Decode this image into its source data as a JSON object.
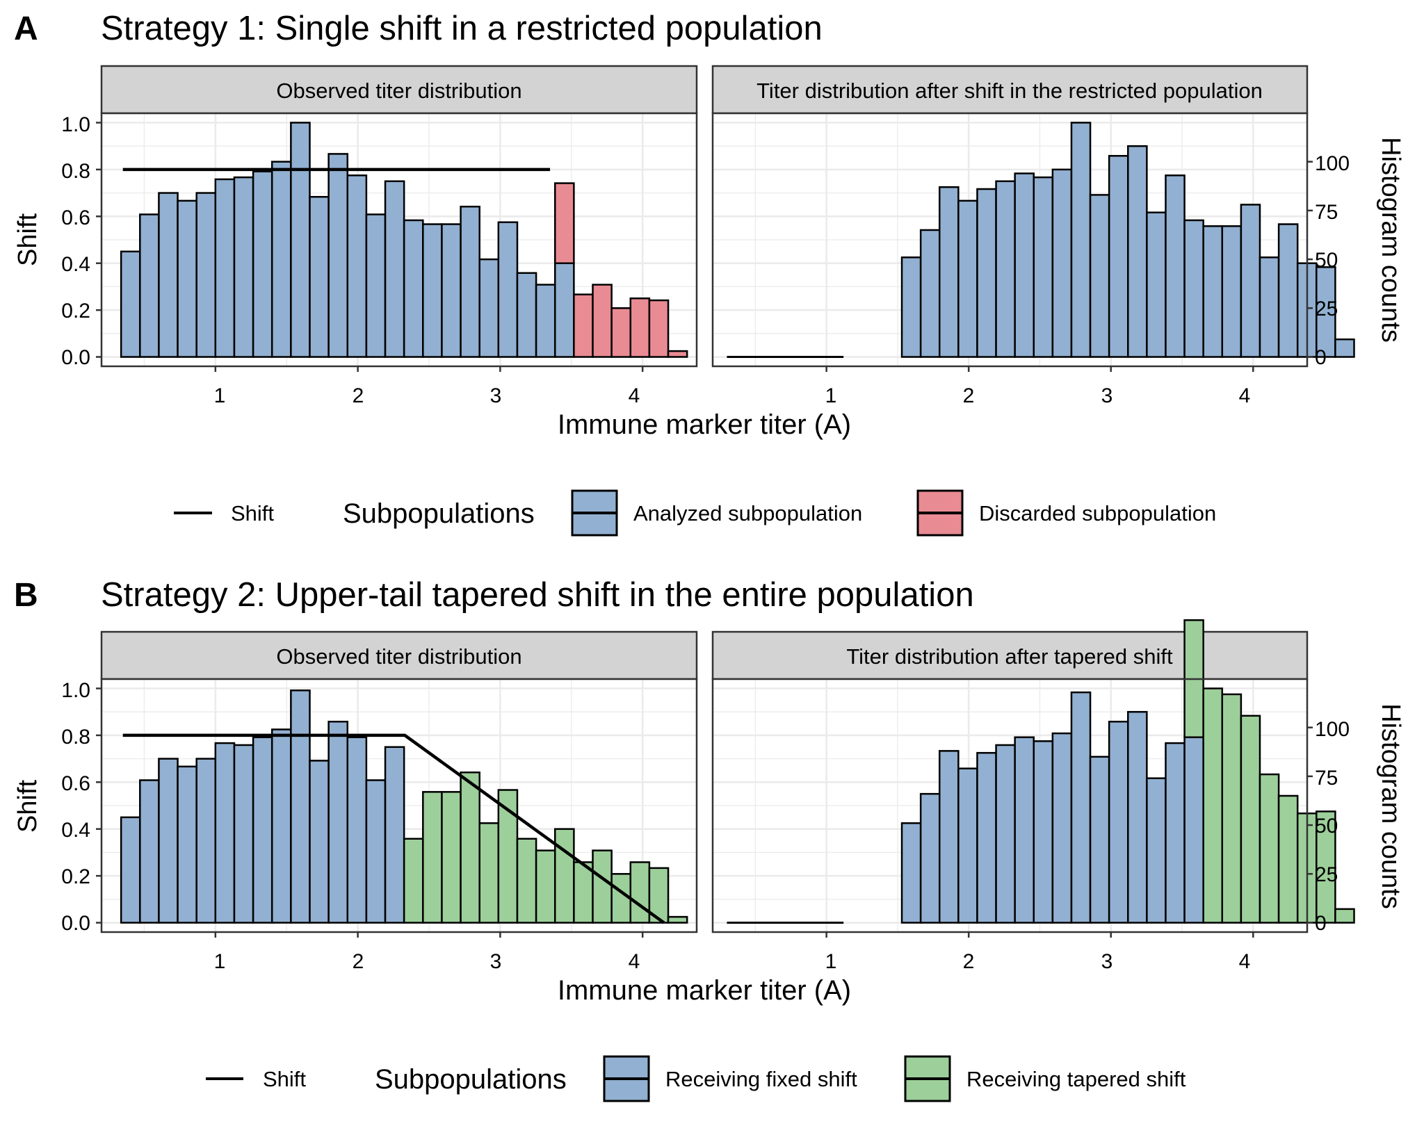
{
  "colors": {
    "fixed": "#92B0D1",
    "discarded": "#E98B93",
    "tapered": "#9DCF9A",
    "strip": "#D3D3D3",
    "grid": "#EBEBEB",
    "ink": "#000000"
  },
  "chart_data": [
    {
      "panel": "A",
      "type": "bar",
      "title": "Strategy 1: Single shift in a restricted population",
      "xlabel": "Immune marker titer (A)",
      "ylabel": "Shift",
      "y2label": "Histogram counts",
      "xlim": [
        0.2,
        4.38
      ],
      "xticks": [
        "1",
        "2",
        "3",
        "4"
      ],
      "ylim": [
        -0.04,
        1.04
      ],
      "yticks": [
        "0.0",
        "0.2",
        "0.4",
        "0.6",
        "0.8",
        "1.0"
      ],
      "y2ticks": [
        "0",
        "25",
        "50",
        "75",
        "100"
      ],
      "counts_per_unit_shift": 120,
      "bin_width": 0.1325,
      "facets": [
        {
          "strip": "Observed titer distribution",
          "x_start": 0.3375,
          "series": [
            {
              "name": "Analyzed subpopulation",
              "color_key": "fixed",
              "values": [
                54,
                73,
                84,
                80,
                84,
                91,
                92,
                95,
                100,
                120,
                82,
                104,
                93,
                73,
                90,
                70,
                68,
                68,
                77,
                50,
                69,
                43,
                37,
                48,
                0,
                0,
                0,
                0,
                0,
                0,
                0
              ]
            },
            {
              "name": "Discarded subpopulation",
              "color_key": "discarded",
              "values": [
                0,
                0,
                0,
                0,
                0,
                0,
                0,
                0,
                0,
                0,
                0,
                0,
                0,
                0,
                0,
                0,
                0,
                0,
                0,
                0,
                0,
                0,
                0,
                41,
                32,
                37,
                25,
                30,
                29,
                3,
                0
              ]
            }
          ],
          "shift_line": {
            "x": [
              0.35,
              3.35
            ],
            "y": [
              0.8,
              0.8
            ]
          }
        },
        {
          "strip": "Titer distribution after shift in the restricted population",
          "x_start": 0.3375,
          "series": [
            {
              "name": "Analyzed subpopulation",
              "color_key": "fixed",
              "values": [
                0,
                0,
                0,
                0,
                0,
                0,
                0,
                0,
                0,
                51,
                65,
                87,
                80,
                86,
                90,
                94,
                92,
                96,
                120,
                83,
                103,
                108,
                74,
                93,
                70,
                67,
                67,
                78,
                51,
                68,
                48,
                46,
                9
              ]
            }
          ],
          "baseline_line": {
            "x": [
              0.3,
              1.12
            ],
            "y": [
              0,
              0
            ]
          }
        }
      ],
      "legend": {
        "shift_label": "Shift",
        "title": "Subpopulations",
        "items": [
          {
            "label": "Analyzed subpopulation",
            "color_key": "fixed"
          },
          {
            "label": "Discarded subpopulation",
            "color_key": "discarded"
          }
        ]
      }
    },
    {
      "panel": "B",
      "type": "bar",
      "title": "Strategy 2: Upper-tail tapered shift in the entire population",
      "xlabel": "Immune marker titer (A)",
      "ylabel": "Shift",
      "y2label": "Histogram counts",
      "xlim": [
        0.2,
        4.38
      ],
      "xticks": [
        "1",
        "2",
        "3",
        "4"
      ],
      "ylim": [
        -0.04,
        1.04
      ],
      "yticks": [
        "0.0",
        "0.2",
        "0.4",
        "0.6",
        "0.8",
        "1.0"
      ],
      "y2ticks": [
        "0",
        "25",
        "50",
        "75",
        "100"
      ],
      "counts_per_unit_shift": 120,
      "bin_width": 0.1325,
      "facets": [
        {
          "strip": "Observed titer distribution",
          "x_start": 0.3375,
          "series": [
            {
              "name": "Receiving fixed shift",
              "color_key": "fixed",
              "values": [
                54,
                73,
                84,
                80,
                84,
                92,
                91,
                95,
                99,
                119,
                83,
                103,
                95,
                73,
                90,
                0,
                0,
                0,
                0,
                0,
                0,
                0,
                0,
                0,
                0,
                0,
                0,
                0,
                0,
                0,
                0
              ]
            },
            {
              "name": "Receiving tapered shift",
              "color_key": "tapered",
              "values": [
                0,
                0,
                0,
                0,
                0,
                0,
                0,
                0,
                0,
                0,
                0,
                0,
                0,
                0,
                0,
                43,
                67,
                67,
                77,
                51,
                68,
                43,
                37,
                48,
                31,
                37,
                25,
                31,
                28,
                3,
                0
              ]
            }
          ],
          "shift_line": {
            "x": [
              0.35,
              2.33,
              4.15
            ],
            "y": [
              0.8,
              0.8,
              0.0
            ]
          }
        },
        {
          "strip": "Titer distribution after tapered shift",
          "x_start": 0.3375,
          "series": [
            {
              "name": "Receiving fixed shift",
              "color_key": "fixed",
              "values": [
                0,
                0,
                0,
                0,
                0,
                0,
                0,
                0,
                0,
                51,
                66,
                88,
                79,
                87,
                91,
                95,
                93,
                97,
                118,
                85,
                103,
                108,
                74,
                92,
                95,
                0,
                0,
                0,
                0,
                0,
                0,
                0,
                0
              ]
            },
            {
              "name": "Receiving tapered shift",
              "color_key": "tapered",
              "values": [
                0,
                0,
                0,
                0,
                0,
                0,
                0,
                0,
                0,
                0,
                0,
                0,
                0,
                0,
                0,
                0,
                0,
                0,
                0,
                0,
                0,
                0,
                0,
                0,
                60,
                120,
                117,
                106,
                76,
                65,
                56,
                57,
                7
              ]
            }
          ],
          "baseline_line": {
            "x": [
              0.3,
              1.12
            ],
            "y": [
              0,
              0
            ]
          }
        }
      ],
      "legend": {
        "shift_label": "Shift",
        "title": "Subpopulations",
        "items": [
          {
            "label": "Receiving fixed shift",
            "color_key": "fixed"
          },
          {
            "label": "Receiving tapered shift",
            "color_key": "tapered"
          }
        ]
      }
    }
  ]
}
